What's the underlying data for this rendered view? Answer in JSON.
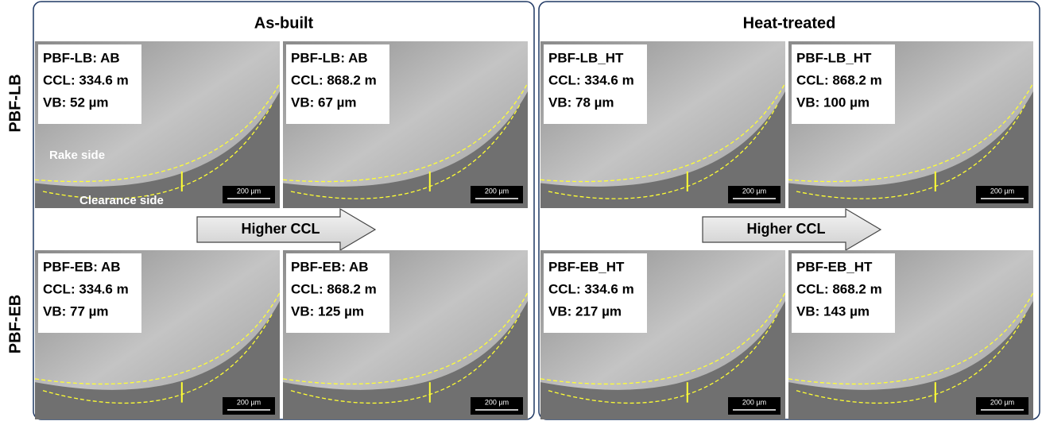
{
  "row_labels": [
    "PBF-LB",
    "PBF-EB"
  ],
  "panels": [
    {
      "title": "As-built",
      "arrow_label": "Higher CCL",
      "images": [
        {
          "lines": [
            "PBF-LB: AB",
            "CCL: 334.6 m",
            "VB: 52 µm"
          ],
          "scale_bar": "200 µm"
        },
        {
          "lines": [
            "PBF-LB: AB",
            "CCL: 868.2 m",
            "VB: 67 µm"
          ],
          "scale_bar": "200 µm"
        },
        {
          "lines": [
            "PBF-EB: AB",
            "CCL: 334.6 m",
            "VB: 77 µm"
          ],
          "scale_bar": "200 µm"
        },
        {
          "lines": [
            "PBF-EB: AB",
            "CCL: 868.2 m",
            "VB: 125 µm"
          ],
          "scale_bar": "200 µm"
        }
      ]
    },
    {
      "title": "Heat-treated",
      "arrow_label": "Higher CCL",
      "images": [
        {
          "lines": [
            "PBF-LB_HT",
            "CCL: 334.6 m",
            "VB: 78 µm"
          ],
          "scale_bar": "200 µm"
        },
        {
          "lines": [
            "PBF-LB_HT",
            "CCL: 868.2 m",
            "VB: 100 µm"
          ],
          "scale_bar": "200 µm"
        },
        {
          "lines": [
            "PBF-EB_HT",
            "CCL: 334.6 m",
            "VB: 217 µm"
          ],
          "scale_bar": "200 µm"
        },
        {
          "lines": [
            "PBF-EB_HT",
            "CCL: 868.2 m",
            "VB: 143 µm"
          ],
          "scale_bar": "200 µm"
        }
      ]
    }
  ],
  "annotations": [
    "Rake side",
    "Clearance side"
  ]
}
